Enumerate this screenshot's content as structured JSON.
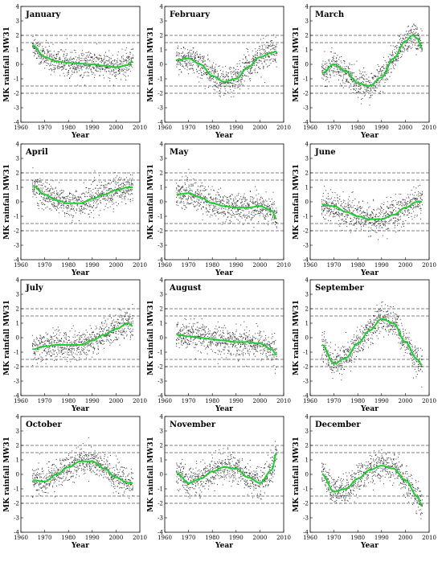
{
  "figure": {
    "xlabel": "Year",
    "ylabel": "MK rainfall MW31",
    "xticks": [
      1960,
      1970,
      1980,
      1990,
      2000,
      2010
    ],
    "yticks": [
      -4,
      -3,
      -2,
      -1,
      0,
      1,
      2,
      3,
      4
    ]
  },
  "chart_data": [
    {
      "type": "scatter",
      "title": "January",
      "xlabel": "Year",
      "ylabel": "MK rainfall MW31",
      "xlim": [
        1960,
        2010
      ],
      "ylim": [
        -4,
        4
      ],
      "thresholds": [
        2,
        1.5,
        -1.5,
        -2
      ],
      "data_range": [
        1965,
        2007
      ],
      "trend": {
        "x": [
          1965,
          1970,
          1975,
          1980,
          1985,
          1990,
          1995,
          2000,
          2005,
          2007
        ],
        "y": [
          1.3,
          0.5,
          0.2,
          0.1,
          0.05,
          0.0,
          -0.1,
          -0.2,
          -0.05,
          0.2
        ]
      },
      "spread": 0.8
    },
    {
      "type": "scatter",
      "title": "February",
      "xlabel": "Year",
      "ylabel": "MK rainfall MW31",
      "xlim": [
        1960,
        2010
      ],
      "ylim": [
        -4,
        4
      ],
      "thresholds": [
        2,
        1.5,
        -1.5,
        -2
      ],
      "data_range": [
        1965,
        2007
      ],
      "trend": {
        "x": [
          1965,
          1970,
          1975,
          1980,
          1985,
          1990,
          1995,
          2000,
          2005,
          2007
        ],
        "y": [
          0.3,
          0.4,
          0.0,
          -0.8,
          -1.2,
          -1.0,
          -0.2,
          0.5,
          0.8,
          0.9
        ]
      },
      "spread": 0.9
    },
    {
      "type": "scatter",
      "title": "March",
      "xlabel": "Year",
      "ylabel": "MK rainfall MW31",
      "xlim": [
        1960,
        2010
      ],
      "ylim": [
        -4,
        4
      ],
      "thresholds": [
        2,
        1.5,
        -1.5,
        -2
      ],
      "data_range": [
        1965,
        2007
      ],
      "trend": {
        "x": [
          1965,
          1970,
          1975,
          1980,
          1985,
          1990,
          1995,
          2000,
          2003,
          2005,
          2007
        ],
        "y": [
          -0.6,
          0.0,
          -0.5,
          -1.3,
          -1.5,
          -0.9,
          0.4,
          1.6,
          2.0,
          1.8,
          1.1
        ]
      },
      "spread": 0.8
    },
    {
      "type": "scatter",
      "title": "April",
      "xlabel": "Year",
      "ylabel": "MK rainfall MW31",
      "xlim": [
        1960,
        2010
      ],
      "ylim": [
        -4,
        4
      ],
      "thresholds": [
        2,
        1.5,
        -1.5,
        -2
      ],
      "data_range": [
        1965,
        2007
      ],
      "trend": {
        "x": [
          1965,
          1970,
          1975,
          1980,
          1985,
          1990,
          1995,
          2000,
          2005,
          2007
        ],
        "y": [
          1.1,
          0.5,
          0.1,
          -0.1,
          -0.1,
          0.2,
          0.5,
          0.8,
          1.0,
          1.0
        ]
      },
      "spread": 0.9
    },
    {
      "type": "scatter",
      "title": "May",
      "xlabel": "Year",
      "ylabel": "MK rainfall MW31",
      "xlim": [
        1960,
        2010
      ],
      "ylim": [
        -4,
        4
      ],
      "thresholds": [
        2,
        1.5,
        -1.5,
        -2
      ],
      "data_range": [
        1965,
        2007
      ],
      "trend": {
        "x": [
          1965,
          1970,
          1975,
          1980,
          1985,
          1990,
          1995,
          2000,
          2005,
          2007
        ],
        "y": [
          0.5,
          0.6,
          0.3,
          -0.1,
          -0.3,
          -0.4,
          -0.4,
          -0.3,
          -0.6,
          -1.2
        ]
      },
      "spread": 0.9
    },
    {
      "type": "scatter",
      "title": "June",
      "xlabel": "Year",
      "ylabel": "MK rainfall MW31",
      "xlim": [
        1960,
        2010
      ],
      "ylim": [
        -4,
        4
      ],
      "thresholds": [
        2,
        1.5,
        -1.5,
        -2
      ],
      "data_range": [
        1965,
        2007
      ],
      "trend": {
        "x": [
          1965,
          1970,
          1975,
          1980,
          1985,
          1990,
          1995,
          2000,
          2005,
          2007
        ],
        "y": [
          -0.2,
          -0.3,
          -0.7,
          -1.0,
          -1.2,
          -1.2,
          -0.9,
          -0.4,
          0.0,
          0.0
        ]
      },
      "spread": 0.9
    },
    {
      "type": "scatter",
      "title": "July",
      "xlabel": "Year",
      "ylabel": "MK rainfall MW31",
      "xlim": [
        1960,
        2010
      ],
      "ylim": [
        -4,
        4
      ],
      "thresholds": [
        2,
        1.5,
        -1.5,
        -2
      ],
      "data_range": [
        1965,
        2007
      ],
      "trend": {
        "x": [
          1965,
          1970,
          1975,
          1980,
          1985,
          1990,
          1995,
          2000,
          2005,
          2007
        ],
        "y": [
          -0.8,
          -0.6,
          -0.5,
          -0.5,
          -0.5,
          -0.2,
          0.2,
          0.6,
          1.0,
          0.8
        ]
      },
      "spread": 0.9
    },
    {
      "type": "scatter",
      "title": "August",
      "xlabel": "Year",
      "ylabel": "MK rainfall MW31",
      "xlim": [
        1960,
        2010
      ],
      "ylim": [
        -4,
        4
      ],
      "thresholds": [
        2,
        1.5,
        -1.5,
        -2
      ],
      "data_range": [
        1965,
        2007
      ],
      "trend": {
        "x": [
          1965,
          1970,
          1975,
          1980,
          1985,
          1990,
          1995,
          2000,
          2005,
          2007
        ],
        "y": [
          0.2,
          0.1,
          0.0,
          -0.1,
          -0.2,
          -0.3,
          -0.3,
          -0.4,
          -0.8,
          -1.2
        ]
      },
      "spread": 0.9
    },
    {
      "type": "scatter",
      "title": "September",
      "xlabel": "Year",
      "ylabel": "MK rainfall MW31",
      "xlim": [
        1960,
        2010
      ],
      "ylim": [
        -4,
        4
      ],
      "thresholds": [
        2,
        1.5,
        -1.5,
        -2
      ],
      "data_range": [
        1965,
        2007
      ],
      "trend": {
        "x": [
          1965,
          1970,
          1975,
          1980,
          1985,
          1990,
          1995,
          2000,
          2005,
          2007
        ],
        "y": [
          -0.5,
          -1.8,
          -1.4,
          -0.4,
          0.5,
          1.3,
          1.0,
          -0.3,
          -1.5,
          -1.9
        ]
      },
      "spread": 0.9
    },
    {
      "type": "scatter",
      "title": "October",
      "xlabel": "Year",
      "ylabel": "MK rainfall MW31",
      "xlim": [
        1960,
        2010
      ],
      "ylim": [
        -4,
        4
      ],
      "thresholds": [
        2,
        1.5,
        -1.5,
        -2
      ],
      "data_range": [
        1965,
        2007
      ],
      "trend": {
        "x": [
          1965,
          1970,
          1975,
          1980,
          1985,
          1990,
          1995,
          2000,
          2005,
          2007
        ],
        "y": [
          -0.4,
          -0.5,
          0.0,
          0.5,
          0.9,
          0.9,
          0.4,
          -0.2,
          -0.6,
          -0.6
        ]
      },
      "spread": 0.9
    },
    {
      "type": "scatter",
      "title": "November",
      "xlabel": "Year",
      "ylabel": "MK rainfall MW31",
      "xlim": [
        1960,
        2010
      ],
      "ylim": [
        -4,
        4
      ],
      "thresholds": [
        2,
        1.5,
        -1.5,
        -2
      ],
      "data_range": [
        1965,
        2007
      ],
      "trend": {
        "x": [
          1965,
          1970,
          1975,
          1980,
          1985,
          1990,
          1995,
          2000,
          2005,
          2007
        ],
        "y": [
          0.1,
          -0.6,
          -0.3,
          0.2,
          0.5,
          0.4,
          -0.2,
          -0.6,
          0.3,
          1.5
        ]
      },
      "spread": 0.9
    },
    {
      "type": "scatter",
      "title": "December",
      "xlabel": "Year",
      "ylabel": "MK rainfall MW31",
      "xlim": [
        1960,
        2010
      ],
      "ylim": [
        -4,
        4
      ],
      "thresholds": [
        2,
        1.5,
        -1.5,
        -2
      ],
      "data_range": [
        1965,
        2007
      ],
      "trend": {
        "x": [
          1965,
          1970,
          1975,
          1980,
          1985,
          1990,
          1995,
          2000,
          2005,
          2007
        ],
        "y": [
          0.0,
          -1.2,
          -1.0,
          -0.3,
          0.3,
          0.6,
          0.4,
          -0.4,
          -1.5,
          -2.2
        ]
      },
      "spread": 0.9
    }
  ],
  "colors": {
    "trend": "#22cc33",
    "points": "#333333",
    "threshold": "#555555",
    "axis": "#000000"
  }
}
